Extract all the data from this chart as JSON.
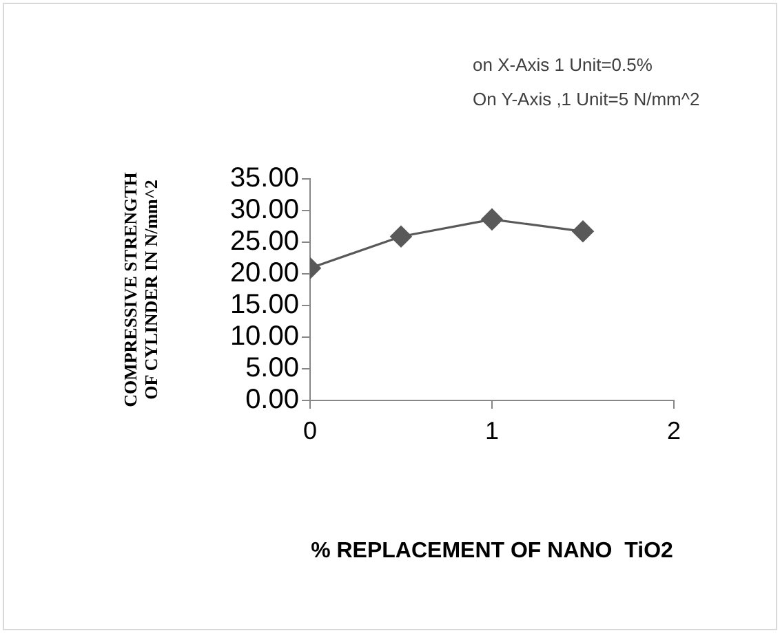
{
  "chart_data": {
    "type": "line",
    "xlabel": "% REPLACEMENT OF NANO  TiO2",
    "ylabel": "COMPRESSIVE STRENGTH OF CYLINDER IN N/mm^2",
    "annotations": [
      "on X-Axis 1 Unit=0.5%",
      "On Y-Axis ,1 Unit=5 N/mm^2"
    ],
    "x": [
      0,
      0.5,
      1,
      1.5
    ],
    "series": [
      {
        "color": "#595959",
        "values": [
          20.9,
          25.9,
          28.6,
          26.7
        ]
      }
    ],
    "xlim": [
      0,
      2
    ],
    "xticks": [
      0,
      1,
      2
    ],
    "ylim": [
      0,
      35
    ],
    "yticks": [
      {
        "value": 0,
        "label": "0.00"
      },
      {
        "value": 5,
        "label": "5.00"
      },
      {
        "value": 10,
        "label": "10.00"
      },
      {
        "value": 15,
        "label": "15.00"
      },
      {
        "value": 20,
        "label": "20.00"
      },
      {
        "value": 25,
        "label": "25.00"
      },
      {
        "value": 30,
        "label": "30.00"
      },
      {
        "value": 35,
        "label": "35.00"
      }
    ],
    "grid": false,
    "legend": false,
    "marker": "diamond",
    "line_style": "solid"
  }
}
